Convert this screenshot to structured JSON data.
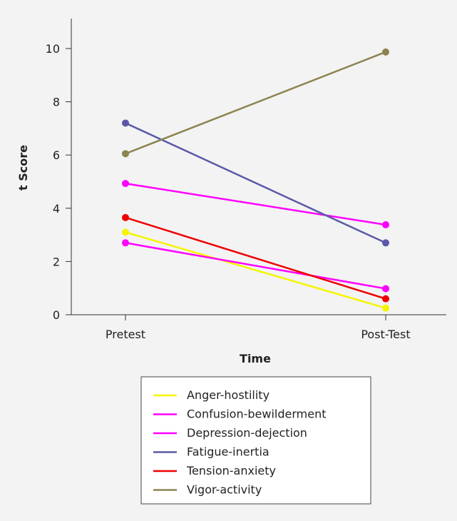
{
  "chart_data": {
    "type": "line",
    "title": "",
    "xlabel": "Time",
    "ylabel": "t Score",
    "categories": [
      "Pretest",
      "Post-Test"
    ],
    "ylim": [
      0,
      11
    ],
    "yticks": [
      0,
      2,
      4,
      6,
      8,
      10
    ],
    "grid": false,
    "legend_position": "bottom",
    "background_color": "#f3f3f3",
    "series": [
      {
        "name": "Anger-hostility",
        "color": "#f5f500",
        "values": [
          3.1,
          0.25
        ]
      },
      {
        "name": "Confusion-bewilderment",
        "color": "#ff00ff",
        "values": [
          2.7,
          0.98
        ]
      },
      {
        "name": "Depression-dejection",
        "color": "#ff00ff",
        "values": [
          4.93,
          3.38
        ]
      },
      {
        "name": "Fatigue-inertia",
        "color": "#5a5aa8",
        "values": [
          7.2,
          2.7
        ]
      },
      {
        "name": "Tension-anxiety",
        "color": "#ee0000",
        "values": [
          3.65,
          0.6
        ]
      },
      {
        "name": "Vigor-activity",
        "color": "#8c8450",
        "values": [
          6.05,
          9.87
        ]
      }
    ]
  }
}
